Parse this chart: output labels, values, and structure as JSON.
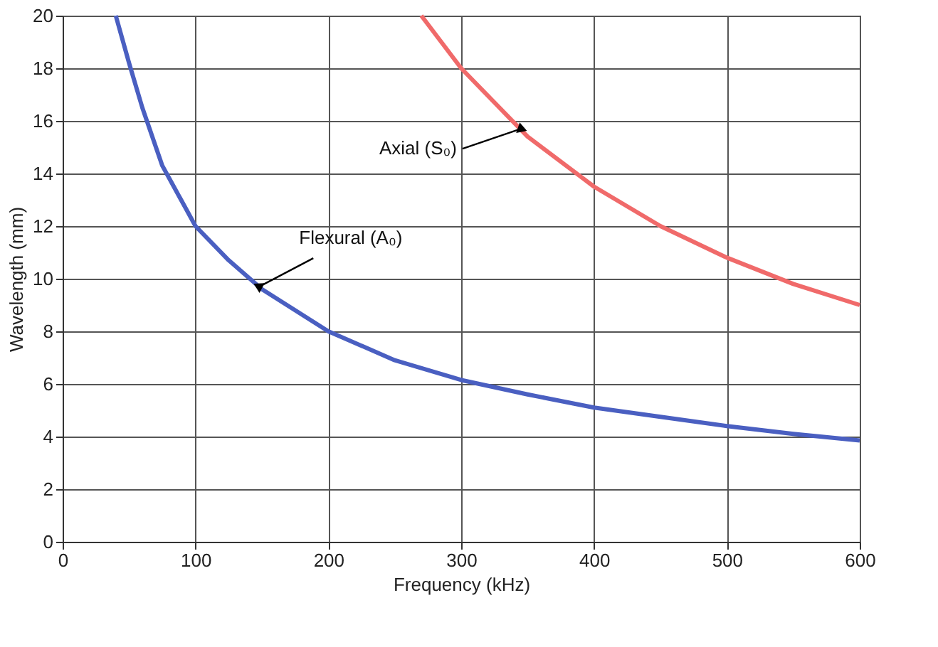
{
  "chart_data": {
    "type": "line",
    "xlabel": "Frequency (kHz)",
    "ylabel": "Wavelength (mm)",
    "xlim": [
      0,
      600
    ],
    "xticks": [
      0,
      100,
      200,
      300,
      400,
      500,
      600
    ],
    "ylim": [
      0,
      20
    ],
    "yticks": [
      0,
      2,
      4,
      6,
      8,
      10,
      12,
      14,
      16,
      18,
      20
    ],
    "grid": true,
    "marker": "none",
    "line_style": "solid",
    "series": [
      {
        "color": "#4a5fc1",
        "x": [
          40,
          50,
          60,
          75,
          100,
          125,
          150,
          200,
          250,
          300,
          350,
          400,
          450,
          500,
          550,
          600
        ],
        "values": [
          20,
          18.2,
          16.5,
          14.3,
          12,
          10.7,
          9.6,
          8.0,
          6.9,
          6.15,
          5.6,
          5.1,
          4.75,
          4.4,
          4.1,
          3.85
        ]
      },
      {
        "color": "#f06a6a",
        "x": [
          270,
          300,
          350,
          400,
          450,
          500,
          550,
          600
        ],
        "values": [
          20,
          18,
          15.4,
          13.5,
          12,
          10.8,
          9.8,
          9
        ]
      }
    ],
    "annotations": [
      {
        "text": "Axial (S₀)",
        "x": 345,
        "y": 15.7
      },
      {
        "text": "Flexural (A₀)",
        "x": 148,
        "y": 9.7
      }
    ]
  }
}
